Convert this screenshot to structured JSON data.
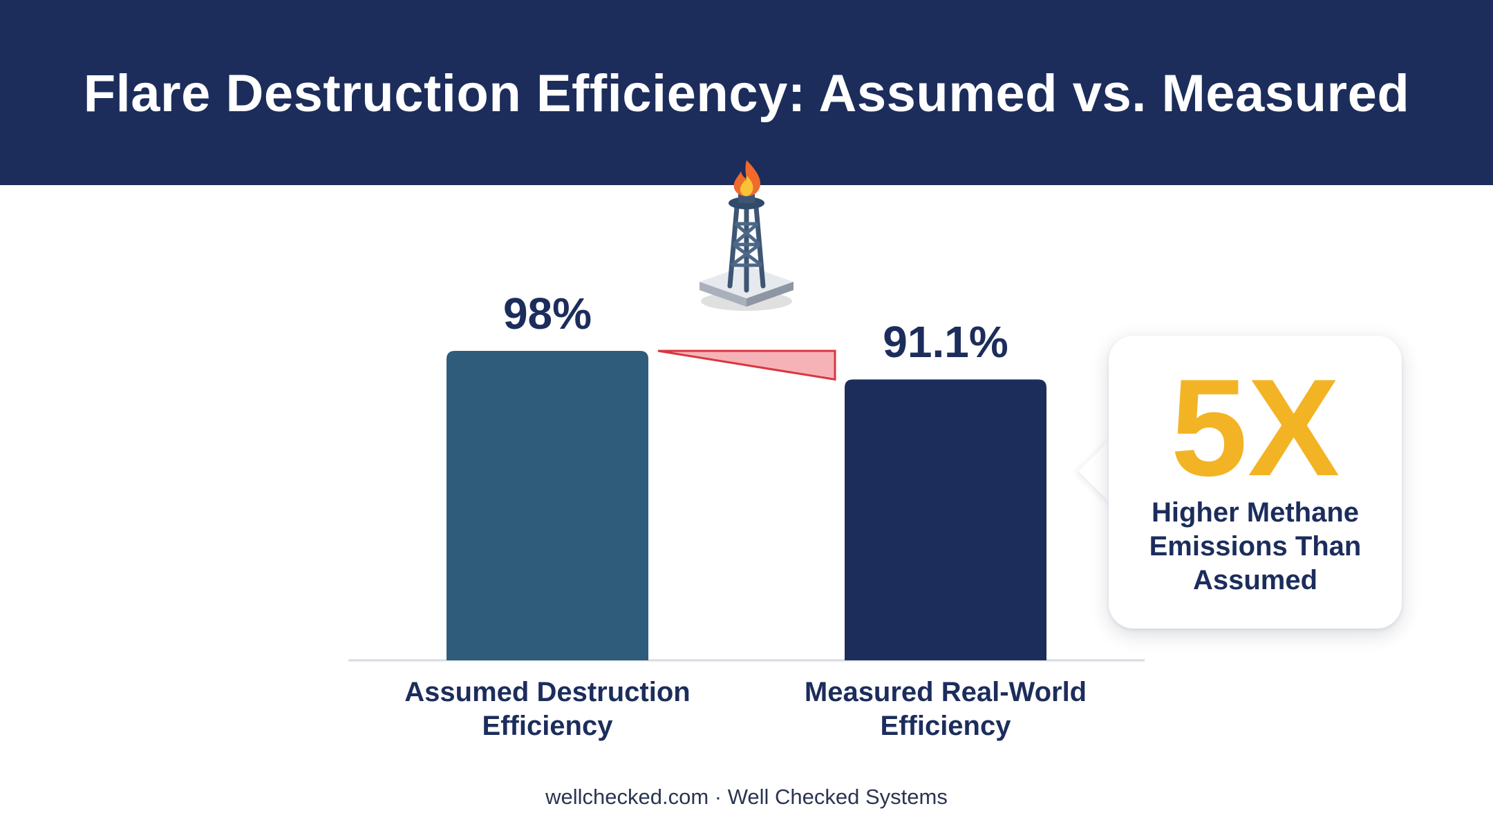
{
  "header": {
    "title": "Flare Destruction Efficiency: Assumed vs. Measured"
  },
  "icons": {
    "flare": "flare-stack-icon"
  },
  "colors": {
    "header_bg": "#1c2d5c",
    "bar_assumed": "#2f5c7a",
    "bar_measured": "#1c2d5c",
    "accent": "#f2b424",
    "gap_fill": "#f5b3b7",
    "gap_stroke": "#d9363e",
    "text": "#1c2d5c"
  },
  "chart_data": {
    "type": "bar",
    "title": "Flare Destruction Efficiency: Assumed vs. Measured",
    "categories": [
      "Assumed Destruction Efficiency",
      "Measured Real-World Efficiency"
    ],
    "values": [
      98,
      91.1
    ],
    "value_labels": [
      "98%",
      "91.1%"
    ],
    "category_labels": [
      "Assumed Destruction\nEfficiency",
      "Measured Real-World\nEfficiency"
    ],
    "ylim": [
      0,
      98
    ],
    "grid": false,
    "legend": "none"
  },
  "callout": {
    "big": "5X",
    "text": "Higher Methane\nEmissions Than\nAssumed"
  },
  "footer": {
    "text": "wellchecked.com · Well Checked Systems"
  }
}
